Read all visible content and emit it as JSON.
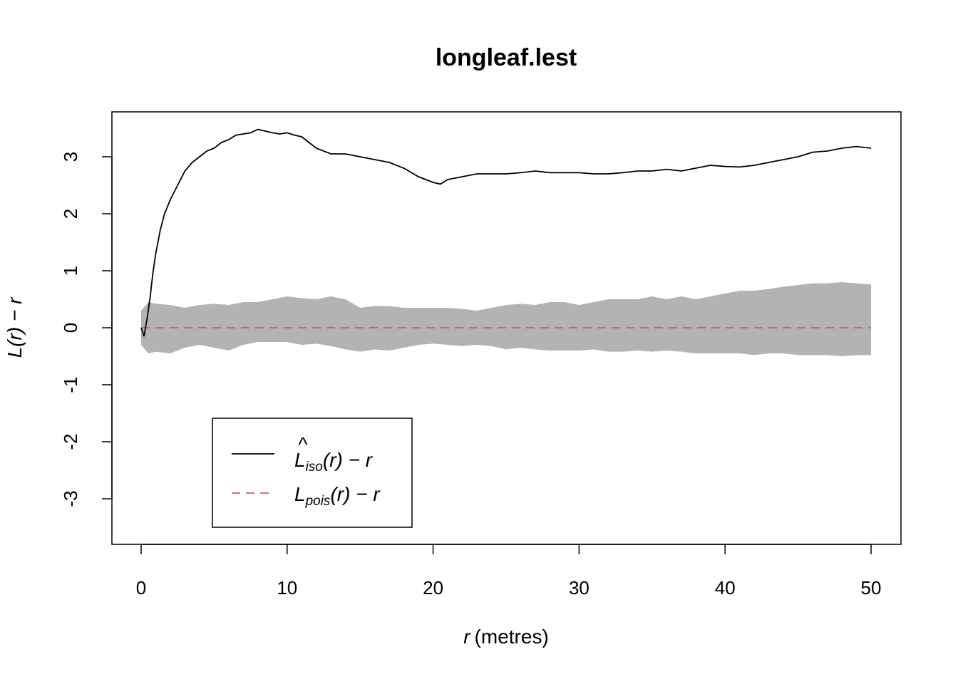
{
  "chart_data": {
    "type": "line",
    "title": "longleaf.lest",
    "xlabel_var": "r",
    "xlabel_unit": "(metres)",
    "ylabel": "L(r) − r",
    "xlim": [
      0,
      50
    ],
    "ylim": [
      -3.75,
      3.75
    ],
    "xticks": [
      0,
      10,
      20,
      30,
      40,
      50
    ],
    "yticks": [
      -3,
      -2,
      -1,
      0,
      1,
      2,
      3
    ],
    "grid": false,
    "legend_position": "bottom-left",
    "series": [
      {
        "name": "L̂iso(r) − r",
        "legend_main": "L",
        "legend_hat": "^",
        "legend_sub": "iso",
        "legend_tail": "(r) − r",
        "color": "#000000",
        "dash": "solid",
        "x": [
          0,
          0.2,
          0.4,
          0.6,
          0.8,
          1.0,
          1.3,
          1.6,
          2.0,
          2.5,
          3.0,
          3.5,
          4.0,
          4.5,
          5.0,
          5.5,
          6.0,
          6.5,
          7.0,
          7.5,
          8.0,
          8.5,
          9.0,
          9.5,
          10.0,
          10.5,
          11.0,
          11.5,
          12.0,
          13.0,
          14.0,
          15.0,
          16.0,
          17.0,
          18.0,
          19.0,
          19.5,
          20.0,
          20.5,
          21.0,
          22.0,
          23.0,
          24.0,
          25.0,
          26.0,
          27.0,
          28.0,
          29.0,
          30.0,
          31.0,
          32.0,
          33.0,
          34.0,
          35.0,
          36.0,
          37.0,
          38.0,
          39.0,
          40.0,
          41.0,
          42.0,
          43.0,
          44.0,
          45.0,
          46.0,
          47.0,
          48.0,
          49.0,
          50.0
        ],
        "y": [
          0.0,
          -0.15,
          0.15,
          0.5,
          0.95,
          1.3,
          1.7,
          2.0,
          2.25,
          2.5,
          2.75,
          2.9,
          3.0,
          3.1,
          3.15,
          3.25,
          3.3,
          3.38,
          3.4,
          3.42,
          3.48,
          3.45,
          3.42,
          3.4,
          3.42,
          3.38,
          3.35,
          3.25,
          3.15,
          3.05,
          3.05,
          3.0,
          2.95,
          2.9,
          2.8,
          2.65,
          2.6,
          2.55,
          2.52,
          2.6,
          2.65,
          2.7,
          2.7,
          2.7,
          2.72,
          2.75,
          2.72,
          2.72,
          2.72,
          2.7,
          2.7,
          2.72,
          2.75,
          2.75,
          2.78,
          2.75,
          2.8,
          2.85,
          2.83,
          2.82,
          2.85,
          2.9,
          2.95,
          3.0,
          3.08,
          3.1,
          3.15,
          3.18,
          3.15
        ]
      },
      {
        "name": "Lpois(r) − r",
        "legend_main": "L",
        "legend_sub": "pois",
        "legend_tail": "(r) − r",
        "color": "#DF536B",
        "dash": "dashed",
        "x": [
          0,
          50
        ],
        "y": [
          0,
          0
        ]
      }
    ],
    "envelope": {
      "color": "#B3B3B3",
      "x": [
        0,
        0.5,
        1.0,
        2.0,
        3.0,
        4.0,
        5.0,
        6.0,
        7.0,
        8.0,
        9.0,
        10.0,
        11.0,
        12.0,
        13.0,
        14.0,
        15.0,
        16.0,
        17.0,
        18.0,
        19.0,
        20.0,
        21.0,
        22.0,
        23.0,
        24.0,
        25.0,
        26.0,
        27.0,
        28.0,
        29.0,
        30.0,
        31.0,
        32.0,
        33.0,
        34.0,
        35.0,
        36.0,
        37.0,
        38.0,
        39.0,
        40.0,
        41.0,
        42.0,
        43.0,
        44.0,
        45.0,
        46.0,
        47.0,
        48.0,
        49.0,
        50.0
      ],
      "upper": [
        0.3,
        0.45,
        0.42,
        0.4,
        0.35,
        0.4,
        0.42,
        0.4,
        0.45,
        0.45,
        0.5,
        0.55,
        0.52,
        0.5,
        0.55,
        0.5,
        0.35,
        0.38,
        0.38,
        0.35,
        0.35,
        0.35,
        0.35,
        0.33,
        0.3,
        0.35,
        0.4,
        0.42,
        0.4,
        0.45,
        0.45,
        0.4,
        0.45,
        0.5,
        0.5,
        0.5,
        0.55,
        0.5,
        0.55,
        0.5,
        0.55,
        0.6,
        0.65,
        0.65,
        0.68,
        0.72,
        0.75,
        0.78,
        0.78,
        0.8,
        0.78,
        0.76
      ],
      "lower": [
        -0.3,
        -0.45,
        -0.42,
        -0.45,
        -0.35,
        -0.3,
        -0.35,
        -0.4,
        -0.3,
        -0.25,
        -0.25,
        -0.25,
        -0.3,
        -0.28,
        -0.32,
        -0.38,
        -0.42,
        -0.38,
        -0.4,
        -0.35,
        -0.3,
        -0.28,
        -0.3,
        -0.32,
        -0.3,
        -0.32,
        -0.38,
        -0.35,
        -0.38,
        -0.4,
        -0.4,
        -0.4,
        -0.38,
        -0.42,
        -0.42,
        -0.4,
        -0.42,
        -0.4,
        -0.42,
        -0.45,
        -0.45,
        -0.45,
        -0.45,
        -0.48,
        -0.45,
        -0.45,
        -0.48,
        -0.48,
        -0.48,
        -0.5,
        -0.48,
        -0.48
      ]
    }
  }
}
